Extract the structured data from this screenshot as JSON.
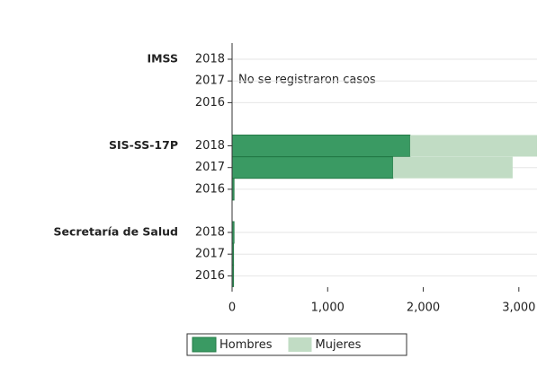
{
  "chart_data": {
    "type": "stacked-barh",
    "groups": [
      {
        "name": "IMSS",
        "categories": [
          "2018",
          "2017",
          "2016"
        ]
      },
      {
        "name": "SIS-SS-17P",
        "categories": [
          "2018",
          "2017",
          "2016"
        ]
      },
      {
        "name": "Secretaría de Salud",
        "categories": [
          "2018",
          "2017",
          "2016"
        ]
      }
    ],
    "series": [
      {
        "name": "Hombres",
        "color": "#3a9a63",
        "values": [
          [
            null,
            null,
            null
          ],
          [
            1862,
            1684,
            20
          ],
          [
            20,
            15,
            15
          ]
        ]
      },
      {
        "name": "Mujeres",
        "color": "#c1dcc4",
        "values": [
          [
            null,
            null,
            null
          ],
          [
            1328,
            1251,
            0
          ],
          [
            0,
            0,
            0
          ]
        ]
      }
    ],
    "annotation": "No se registraron casos",
    "xlim": [
      0,
      3190
    ],
    "xticks": [
      0,
      {
        "value": 1000,
        "label": "1,000"
      },
      {
        "value": 2000,
        "label": "2,000"
      },
      {
        "value": 3000,
        "label": "3,000"
      }
    ],
    "grid": true,
    "legend": "bottom"
  }
}
